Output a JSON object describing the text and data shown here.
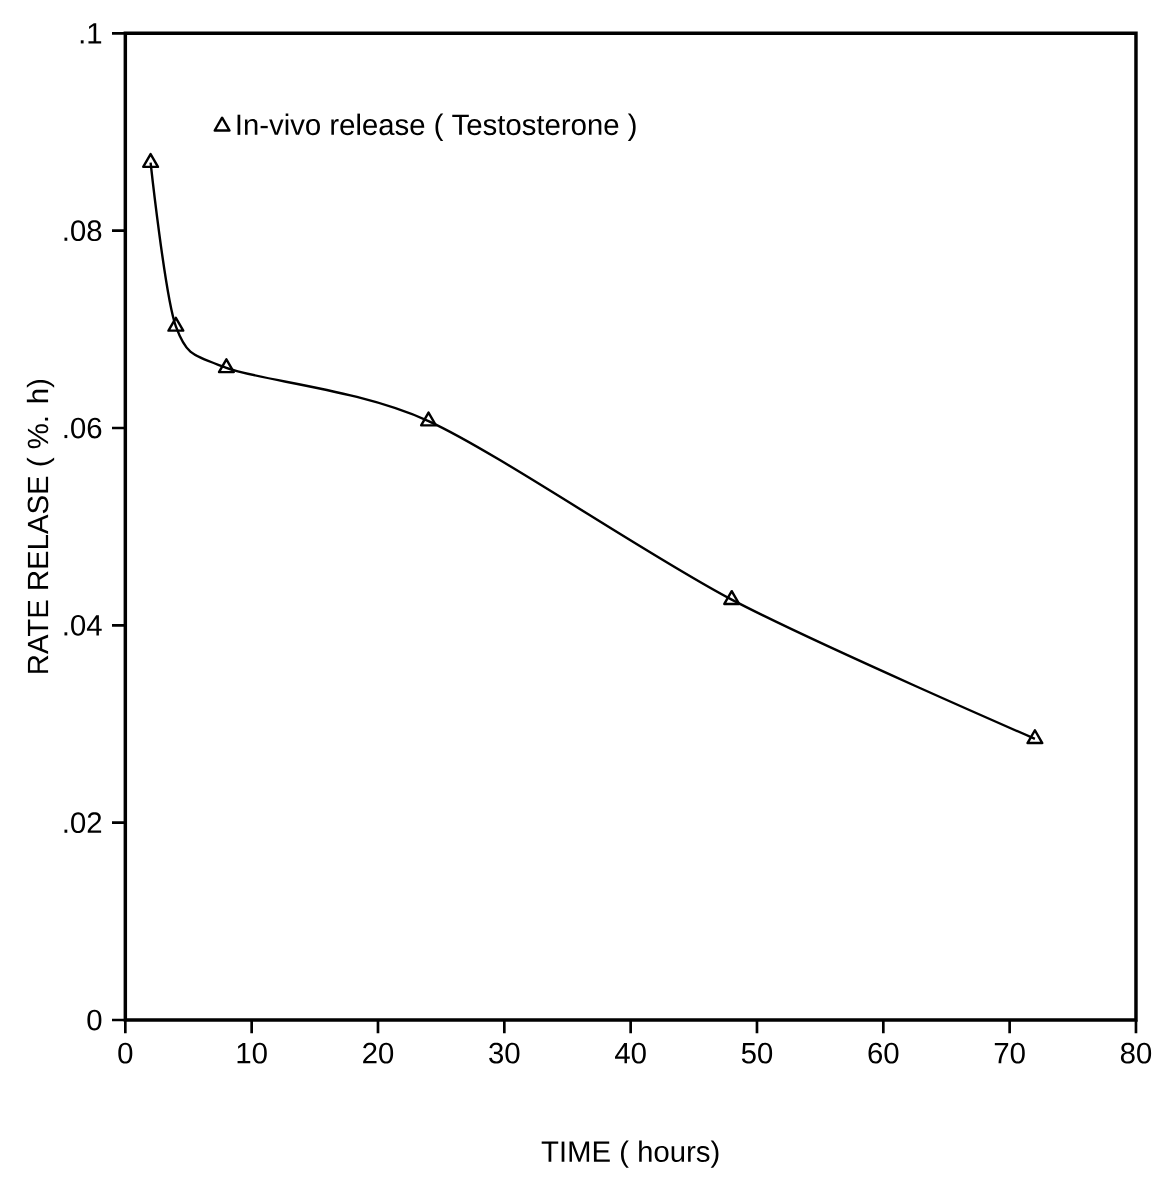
{
  "chart_data": {
    "type": "line",
    "xlabel": "TIME ( hours)",
    "ylabel": "RATE RELASE ( %. h)",
    "x": [
      2,
      4,
      8,
      24,
      48,
      72
    ],
    "series": [
      {
        "name": "In-vivo release ( Testosterone )",
        "color": "#000000",
        "values": [
          0.0869,
          0.0703,
          0.0661,
          0.0607,
          0.0426,
          0.0285
        ]
      }
    ],
    "xlim": [
      0,
      80
    ],
    "ylim": [
      0,
      0.1
    ],
    "xticks": [
      0,
      10,
      20,
      30,
      40,
      50,
      60,
      70,
      80
    ],
    "yticks": [
      0,
      {
        "value": 0.02,
        "label": ".02"
      },
      {
        "value": 0.04,
        "label": ".04"
      },
      {
        "value": 0.06,
        "label": ".06"
      },
      {
        "value": 0.08,
        "label": ".08"
      },
      {
        "value": 0.1,
        "label": ".1"
      }
    ],
    "marker": "triangle",
    "line_style": "solid",
    "legend": "top left",
    "grid": false
  }
}
